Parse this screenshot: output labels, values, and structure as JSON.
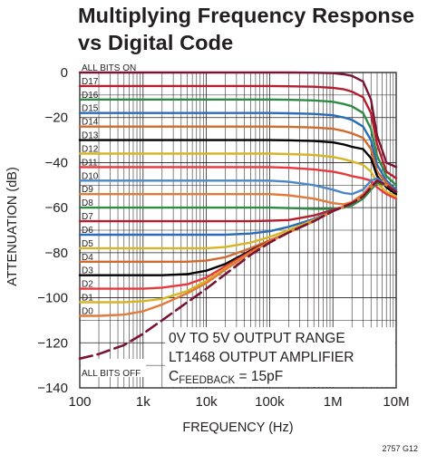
{
  "chart_data": {
    "type": "line",
    "title": "Multiplying Frequency Response",
    "subtitle": "vs Digital Code",
    "xlabel": "FREQUENCY (Hz)",
    "ylabel": "ATTENUATION (dB)",
    "xscale": "log",
    "xlim": [
      100,
      10000000
    ],
    "ylim": [
      -140,
      0
    ],
    "grid": true,
    "x_ticks": [
      "100",
      "1k",
      "10k",
      "100k",
      "1M",
      "10M"
    ],
    "y_ticks": [
      "0",
      "−20",
      "−40",
      "−60",
      "−80",
      "−100",
      "−120",
      "−140"
    ],
    "x": [
      100,
      200,
      500,
      1000,
      2000,
      5000,
      10000,
      20000,
      50000,
      100000,
      200000,
      500000,
      1000000,
      1500000,
      2000000,
      3000000,
      4000000,
      5000000,
      7000000,
      10000000
    ],
    "series": [
      {
        "name": "ALL BITS ON",
        "color": "#7a1432",
        "values": [
          0,
          0,
          0,
          0,
          0,
          0,
          0,
          0,
          0,
          0,
          0,
          -0.1,
          -0.3,
          -0.8,
          -1.5,
          -4,
          -12,
          -28,
          -40,
          -42
        ]
      },
      {
        "name": "D17",
        "color": "#b41e2e",
        "values": [
          -6,
          -6,
          -6,
          -6,
          -6,
          -6,
          -6,
          -6,
          -6,
          -6,
          -6.1,
          -6.3,
          -6.8,
          -7.5,
          -8.5,
          -11,
          -18,
          -32,
          -44,
          -47
        ]
      },
      {
        "name": "D16",
        "color": "#2e8b46",
        "values": [
          -12,
          -12,
          -12,
          -12,
          -12,
          -12,
          -12,
          -12,
          -12,
          -12,
          -12.1,
          -12.4,
          -13,
          -14,
          -15,
          -18,
          -25,
          -37,
          -46,
          -50
        ]
      },
      {
        "name": "D15",
        "color": "#2a6cb5",
        "values": [
          -18,
          -18,
          -18,
          -18,
          -18,
          -18,
          -18,
          -18,
          -18,
          -18,
          -18.1,
          -18.4,
          -19,
          -20,
          -21,
          -24,
          -30,
          -41,
          -48,
          -52
        ]
      },
      {
        "name": "D14",
        "color": "#d2692d",
        "values": [
          -24,
          -24,
          -24,
          -24,
          -24,
          -24,
          -24,
          -24,
          -24,
          -24,
          -24.1,
          -24.4,
          -25,
          -26,
          -27,
          -29,
          -34,
          -44,
          -49,
          -53
        ]
      },
      {
        "name": "D13",
        "color": "#000000",
        "values": [
          -30,
          -30,
          -30,
          -30,
          -30,
          -30,
          -30,
          -30,
          -30,
          -30,
          -30.1,
          -30.4,
          -31,
          -32,
          -33,
          -34,
          -38,
          -46,
          -51,
          -54
        ]
      },
      {
        "name": "D12",
        "color": "#d7b524",
        "values": [
          -36,
          -36,
          -36,
          -36,
          -36,
          -36,
          -36,
          -36,
          -36,
          -36,
          -36.2,
          -36.6,
          -37.5,
          -38.5,
          -39.5,
          -41,
          -44,
          -49,
          -53,
          -55
        ]
      },
      {
        "name": "D11",
        "color": "#e8383d",
        "values": [
          -42,
          -42,
          -42,
          -42,
          -42,
          -42,
          -42,
          -42,
          -42,
          -42,
          -42.3,
          -43,
          -44,
          -45,
          -46,
          -47,
          -48,
          -51,
          -54,
          -56
        ]
      },
      {
        "name": "D10",
        "color": "#4a86c8",
        "values": [
          -48,
          -48,
          -48,
          -48,
          -48,
          -48,
          -48,
          -48,
          -48,
          -48,
          -48.5,
          -50,
          -52,
          -53.5,
          -54,
          -52,
          -48,
          -47,
          -50,
          -53
        ]
      },
      {
        "name": "D9",
        "color": "#e07b39",
        "values": [
          -54,
          -54,
          -54,
          -54,
          -54,
          -54,
          -54,
          -54,
          -54,
          -54,
          -54.5,
          -56,
          -58,
          -58.5,
          -57.5,
          -54,
          -50,
          -48,
          -50,
          -53
        ]
      },
      {
        "name": "D8",
        "color": "#2e8b46",
        "values": [
          -60,
          -60,
          -60,
          -60,
          -60,
          -60,
          -60,
          -60,
          -60,
          -60,
          -60.2,
          -60.5,
          -60.5,
          -60,
          -59,
          -56,
          -52,
          -49,
          -50,
          -53
        ]
      },
      {
        "name": "D7",
        "color": "#b41e2e",
        "values": [
          -66,
          -66,
          -66,
          -66,
          -66,
          -66,
          -66,
          -66,
          -66,
          -65.8,
          -65.5,
          -63.5,
          -61,
          -59.5,
          -58,
          -55,
          -51,
          -48,
          -50,
          -53
        ]
      },
      {
        "name": "D6",
        "color": "#2a6cb5",
        "values": [
          -72,
          -72,
          -72,
          -72,
          -72,
          -72,
          -72,
          -72,
          -71.5,
          -70.5,
          -68.5,
          -65,
          -61.5,
          -59.5,
          -58,
          -55,
          -51,
          -48,
          -50,
          -53
        ]
      },
      {
        "name": "D5",
        "color": "#d7b524",
        "values": [
          -78,
          -78,
          -78,
          -78,
          -78,
          -78,
          -78,
          -77.5,
          -75.5,
          -73,
          -70,
          -65.5,
          -61.5,
          -59.5,
          -58,
          -55,
          -51,
          -48,
          -50,
          -53
        ]
      },
      {
        "name": "D4",
        "color": "#d2692d",
        "values": [
          -84,
          -84,
          -84,
          -84,
          -84,
          -84,
          -83.5,
          -82,
          -78,
          -74.5,
          -71,
          -66,
          -61.5,
          -59.5,
          -58,
          -55,
          -51,
          -48,
          -50,
          -53
        ]
      },
      {
        "name": "D3",
        "color": "#000000",
        "values": [
          -90,
          -90,
          -90,
          -90,
          -90,
          -89.5,
          -88,
          -85,
          -79,
          -75,
          -71,
          -66,
          -61.5,
          -59.5,
          -58,
          -55,
          -51,
          -48,
          -50,
          -53
        ]
      },
      {
        "name": "D2",
        "color": "#e8383d",
        "values": [
          -96,
          -96,
          -96,
          -96,
          -95.5,
          -94,
          -91,
          -86,
          -79.5,
          -75,
          -71,
          -66,
          -61.5,
          -59.5,
          -58,
          -55,
          -51,
          -48,
          -50,
          -53
        ]
      },
      {
        "name": "D1",
        "color": "#d7b524",
        "values": [
          -102,
          -102,
          -102,
          -101.5,
          -100.5,
          -97,
          -92.5,
          -87,
          -80,
          -75,
          -71,
          -66,
          -61.5,
          -59.5,
          -58,
          -55,
          -51,
          -48,
          -50,
          -53
        ]
      },
      {
        "name": "D0",
        "color": "#e07b39",
        "values": [
          -108,
          -108,
          -107.5,
          -106,
          -103,
          -98,
          -93.5,
          -87.5,
          -80,
          -75,
          -71,
          -66,
          -61.5,
          -59.5,
          -58,
          -55,
          -51,
          -48,
          -50,
          -53
        ]
      },
      {
        "name": "ALL BITS OFF",
        "color": "#7a1432",
        "dashed": true,
        "values": [
          -127,
          -125,
          -121,
          -116,
          -110,
          -102,
          -96,
          -89.5,
          -81,
          -75.5,
          -71,
          -66,
          -61.5,
          -59.5,
          -58,
          -55,
          -51,
          -48,
          -50,
          -53
        ]
      }
    ],
    "annotations": [
      "0V TO 5V OUTPUT RANGE",
      "LT1468 OUTPUT AMPLIFIER"
    ],
    "feedback_note": {
      "main": "C",
      "subscript": "FEEDBACK",
      "suffix": " = 15pF"
    }
  },
  "figure_code": "2757 G12"
}
